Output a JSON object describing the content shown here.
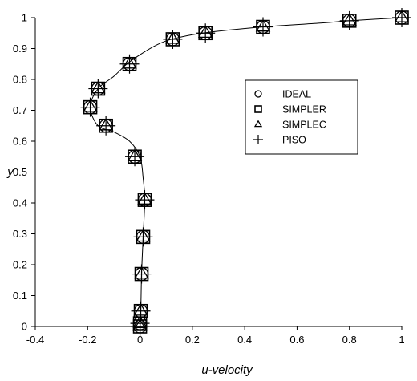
{
  "chart_data": {
    "type": "scatter",
    "title": "",
    "xlabel": "u-velocity",
    "ylabel": "y",
    "xlim": [
      -0.4,
      1.0
    ],
    "ylim": [
      0,
      1.0
    ],
    "xticks": [
      "-0.4",
      "-0.2",
      "0",
      "0.2",
      "0.4",
      "0.6",
      "0.8",
      "1"
    ],
    "yticks": [
      "0",
      "0.1",
      "0.2",
      "0.3",
      "0.4",
      "0.5",
      "0.6",
      "0.7",
      "0.8",
      "0.9",
      "1"
    ],
    "grid": false,
    "legend_position": "right",
    "reference_curve": {
      "x": [
        0,
        0.003,
        0.006,
        0.012,
        0.018,
        0.012,
        0.0,
        -0.04,
        -0.1,
        -0.16,
        -0.19,
        -0.16,
        -0.1,
        -0.05,
        0.0,
        0.06,
        0.12,
        0.24,
        0.47,
        0.7,
        0.8,
        1.0
      ],
      "y": [
        0,
        0.05,
        0.17,
        0.29,
        0.41,
        0.48,
        0.55,
        0.6,
        0.63,
        0.65,
        0.71,
        0.77,
        0.81,
        0.85,
        0.88,
        0.91,
        0.93,
        0.95,
        0.97,
        0.983,
        0.99,
        1.0
      ]
    },
    "series": [
      {
        "name": "IDEAL",
        "marker": "circle",
        "x": [
          0.0,
          0.0,
          0.003,
          0.006,
          0.012,
          0.018,
          -0.02,
          -0.13,
          -0.19,
          -0.16,
          -0.04,
          0.125,
          0.25,
          0.47,
          0.8,
          1.0
        ],
        "y": [
          0.0,
          0.01,
          0.05,
          0.17,
          0.29,
          0.41,
          0.55,
          0.65,
          0.71,
          0.77,
          0.85,
          0.93,
          0.95,
          0.97,
          0.99,
          1.0
        ]
      },
      {
        "name": "SIMPLER",
        "marker": "square",
        "x": [
          0.0,
          0.0,
          0.003,
          0.006,
          0.012,
          0.018,
          -0.02,
          -0.13,
          -0.19,
          -0.16,
          -0.04,
          0.125,
          0.25,
          0.47,
          0.8,
          1.0
        ],
        "y": [
          0.0,
          0.01,
          0.05,
          0.17,
          0.29,
          0.41,
          0.55,
          0.65,
          0.71,
          0.77,
          0.85,
          0.93,
          0.95,
          0.97,
          0.99,
          1.0
        ]
      },
      {
        "name": "SIMPLEC",
        "marker": "triangle",
        "x": [
          0.0,
          0.0,
          0.003,
          0.006,
          0.012,
          0.018,
          -0.02,
          -0.13,
          -0.19,
          -0.16,
          -0.04,
          0.125,
          0.25,
          0.47,
          0.8,
          1.0
        ],
        "y": [
          0.0,
          0.01,
          0.05,
          0.17,
          0.29,
          0.41,
          0.55,
          0.65,
          0.71,
          0.77,
          0.85,
          0.93,
          0.95,
          0.97,
          0.99,
          1.0
        ]
      },
      {
        "name": "PISO",
        "marker": "plus",
        "x": [
          0.0,
          0.0,
          0.003,
          0.006,
          0.012,
          0.018,
          -0.02,
          -0.13,
          -0.19,
          -0.16,
          -0.04,
          0.125,
          0.25,
          0.47,
          0.8,
          1.0
        ],
        "y": [
          0.0,
          0.01,
          0.05,
          0.17,
          0.29,
          0.41,
          0.55,
          0.65,
          0.71,
          0.77,
          0.85,
          0.93,
          0.95,
          0.97,
          0.99,
          1.0
        ]
      }
    ]
  }
}
